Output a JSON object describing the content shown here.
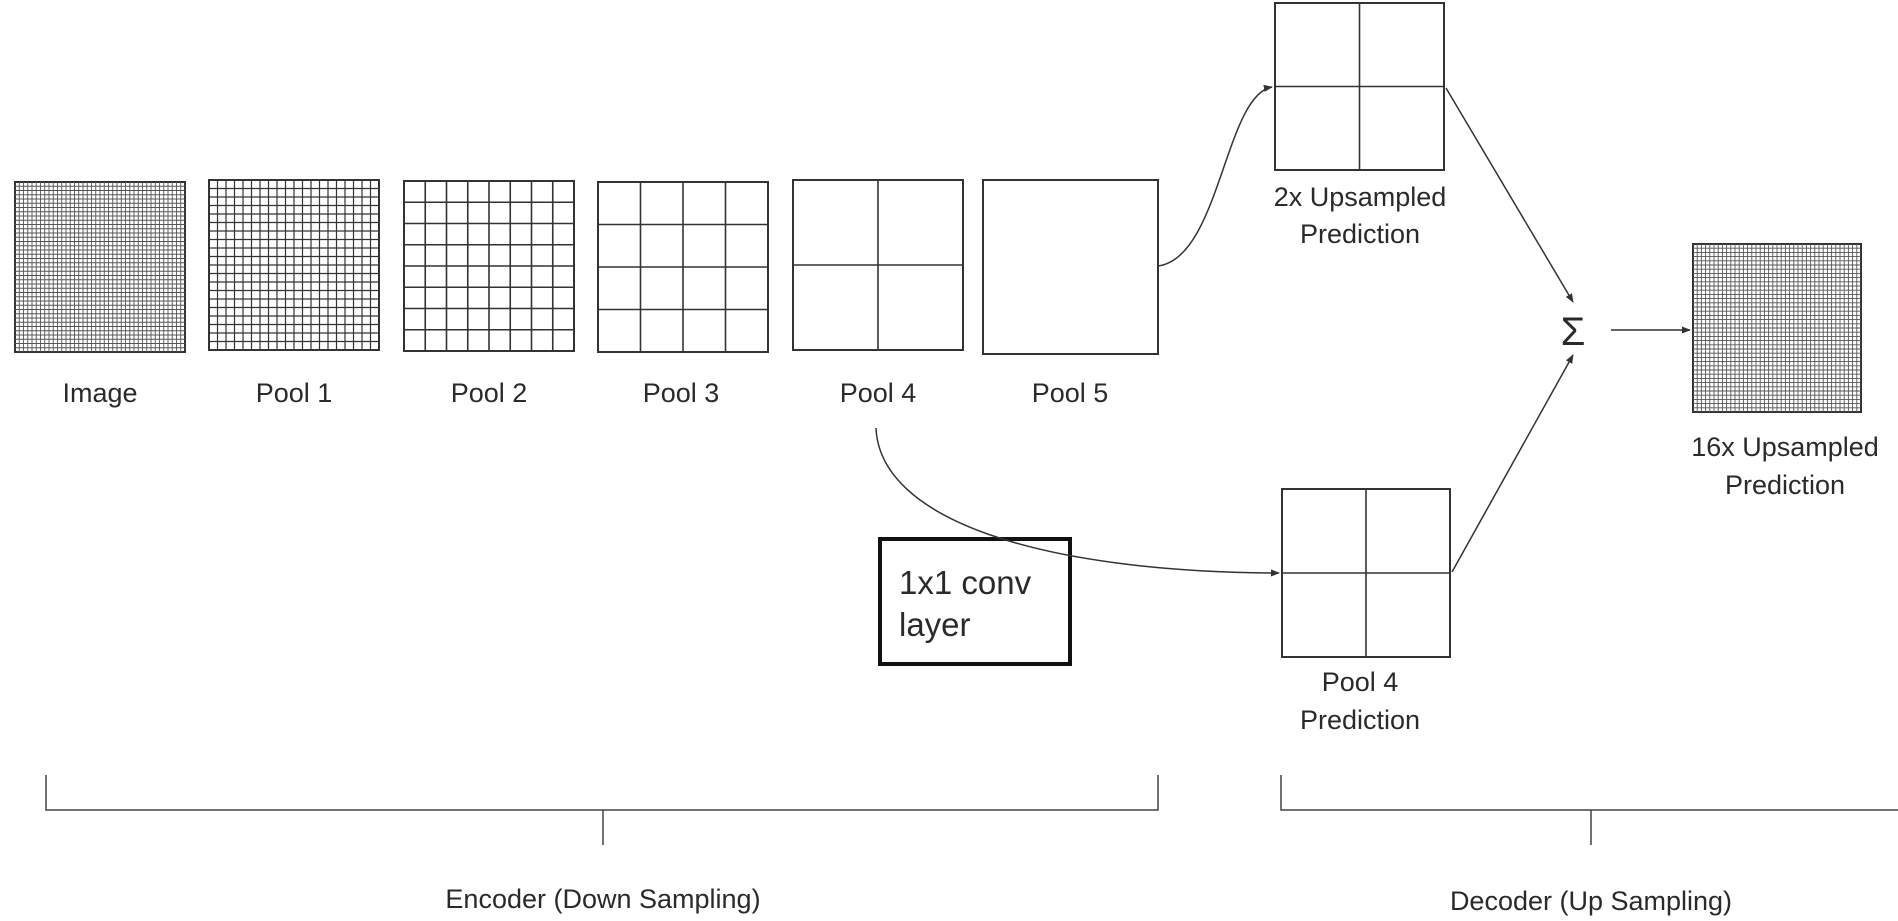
{
  "encoder_label": "Encoder (Down Sampling)",
  "decoder_label": "Decoder (Up Sampling)",
  "sum_symbol": "Σ",
  "conv_layer": {
    "line1": "1x1 conv",
    "line2": "layer"
  },
  "stages": [
    {
      "name": "Image",
      "grid": 40
    },
    {
      "name": "Pool 1",
      "grid": 20
    },
    {
      "name": "Pool 2",
      "grid": 8
    },
    {
      "name": "Pool 3",
      "grid": 4
    },
    {
      "name": "Pool 4",
      "grid": 2
    },
    {
      "name": "Pool 5",
      "grid": 1
    }
  ],
  "predictions": {
    "upsampled_2x": {
      "line1": "2x Upsampled",
      "line2": "Prediction",
      "grid": 2
    },
    "pool4": {
      "line1": "Pool 4",
      "line2": "Prediction",
      "grid": 2
    },
    "upsampled_16x": {
      "line1": "16x Upsampled",
      "line2": "Prediction",
      "grid": 40
    }
  }
}
